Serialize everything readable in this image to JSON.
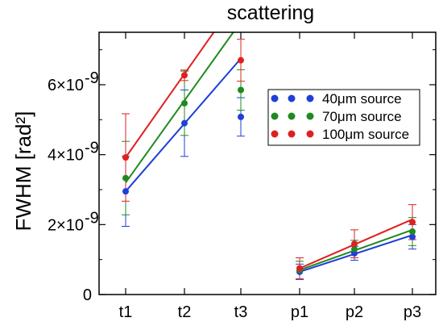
{
  "chart_data": {
    "type": "scatter",
    "title": "scattering",
    "xlabel": "",
    "ylabel": "FWHM [rad²]",
    "categories": [
      "t1",
      "t2",
      "t3",
      "p1",
      "p2",
      "p3"
    ],
    "ylim": [
      0,
      7.5e-09
    ],
    "y_ticks": [
      {
        "value": 0,
        "label": "0",
        "exp": ""
      },
      {
        "value": 2e-09,
        "label": "2×10",
        "exp": "-9"
      },
      {
        "value": 4e-09,
        "label": "4×10",
        "exp": "-9"
      },
      {
        "value": 6e-09,
        "label": "6×10",
        "exp": "-9"
      }
    ],
    "grid": false,
    "legend_position": "right",
    "series": [
      {
        "name": "40μm source",
        "color": "#1f3fd6",
        "values": [
          2.95e-09,
          4.9e-09,
          5.08e-09,
          6.5e-10,
          1.18e-09,
          1.65e-09
        ],
        "errors": [
          1e-09,
          9.5e-10,
          5.5e-10,
          2.2e-10,
          2e-10,
          3.5e-10
        ],
        "fits": [
          {
            "from": "t1",
            "to": "t3",
            "y0": 2.95e-09,
            "y1": 6.75e-09
          },
          {
            "from": "p1",
            "to": "p3",
            "y0": 6.5e-10,
            "y1": 1.7e-09
          }
        ]
      },
      {
        "name": "70μm source",
        "color": "#1f8a1f",
        "values": [
          3.33e-09,
          5.47e-09,
          5.85e-09,
          7e-10,
          1.3e-09,
          1.8e-09
        ],
        "errors": [
          1.05e-09,
          9.2e-10,
          5.8e-10,
          2.5e-10,
          2.5e-10,
          4e-10
        ],
        "fits": [
          {
            "from": "t1",
            "to": "t3",
            "y0": 3.2e-09,
            "y1": 7.8e-09
          },
          {
            "from": "p1",
            "to": "p3",
            "y0": 7e-10,
            "y1": 1.85e-09
          }
        ]
      },
      {
        "name": "100μm source",
        "color": "#e02020",
        "values": [
          3.92e-09,
          6.27e-09,
          6.7e-09,
          7.5e-10,
          1.45e-09,
          2.07e-09
        ],
        "errors": [
          1.25e-09,
          1.5e-10,
          6e-10,
          3e-10,
          4e-10,
          5e-10
        ],
        "fits": [
          {
            "from": "t1",
            "to": "t3",
            "y0": 3.92e-09,
            "y1": 8.6e-09
          },
          {
            "from": "p1",
            "to": "p3",
            "y0": 7.5e-10,
            "y1": 2.15e-09
          }
        ]
      }
    ]
  }
}
